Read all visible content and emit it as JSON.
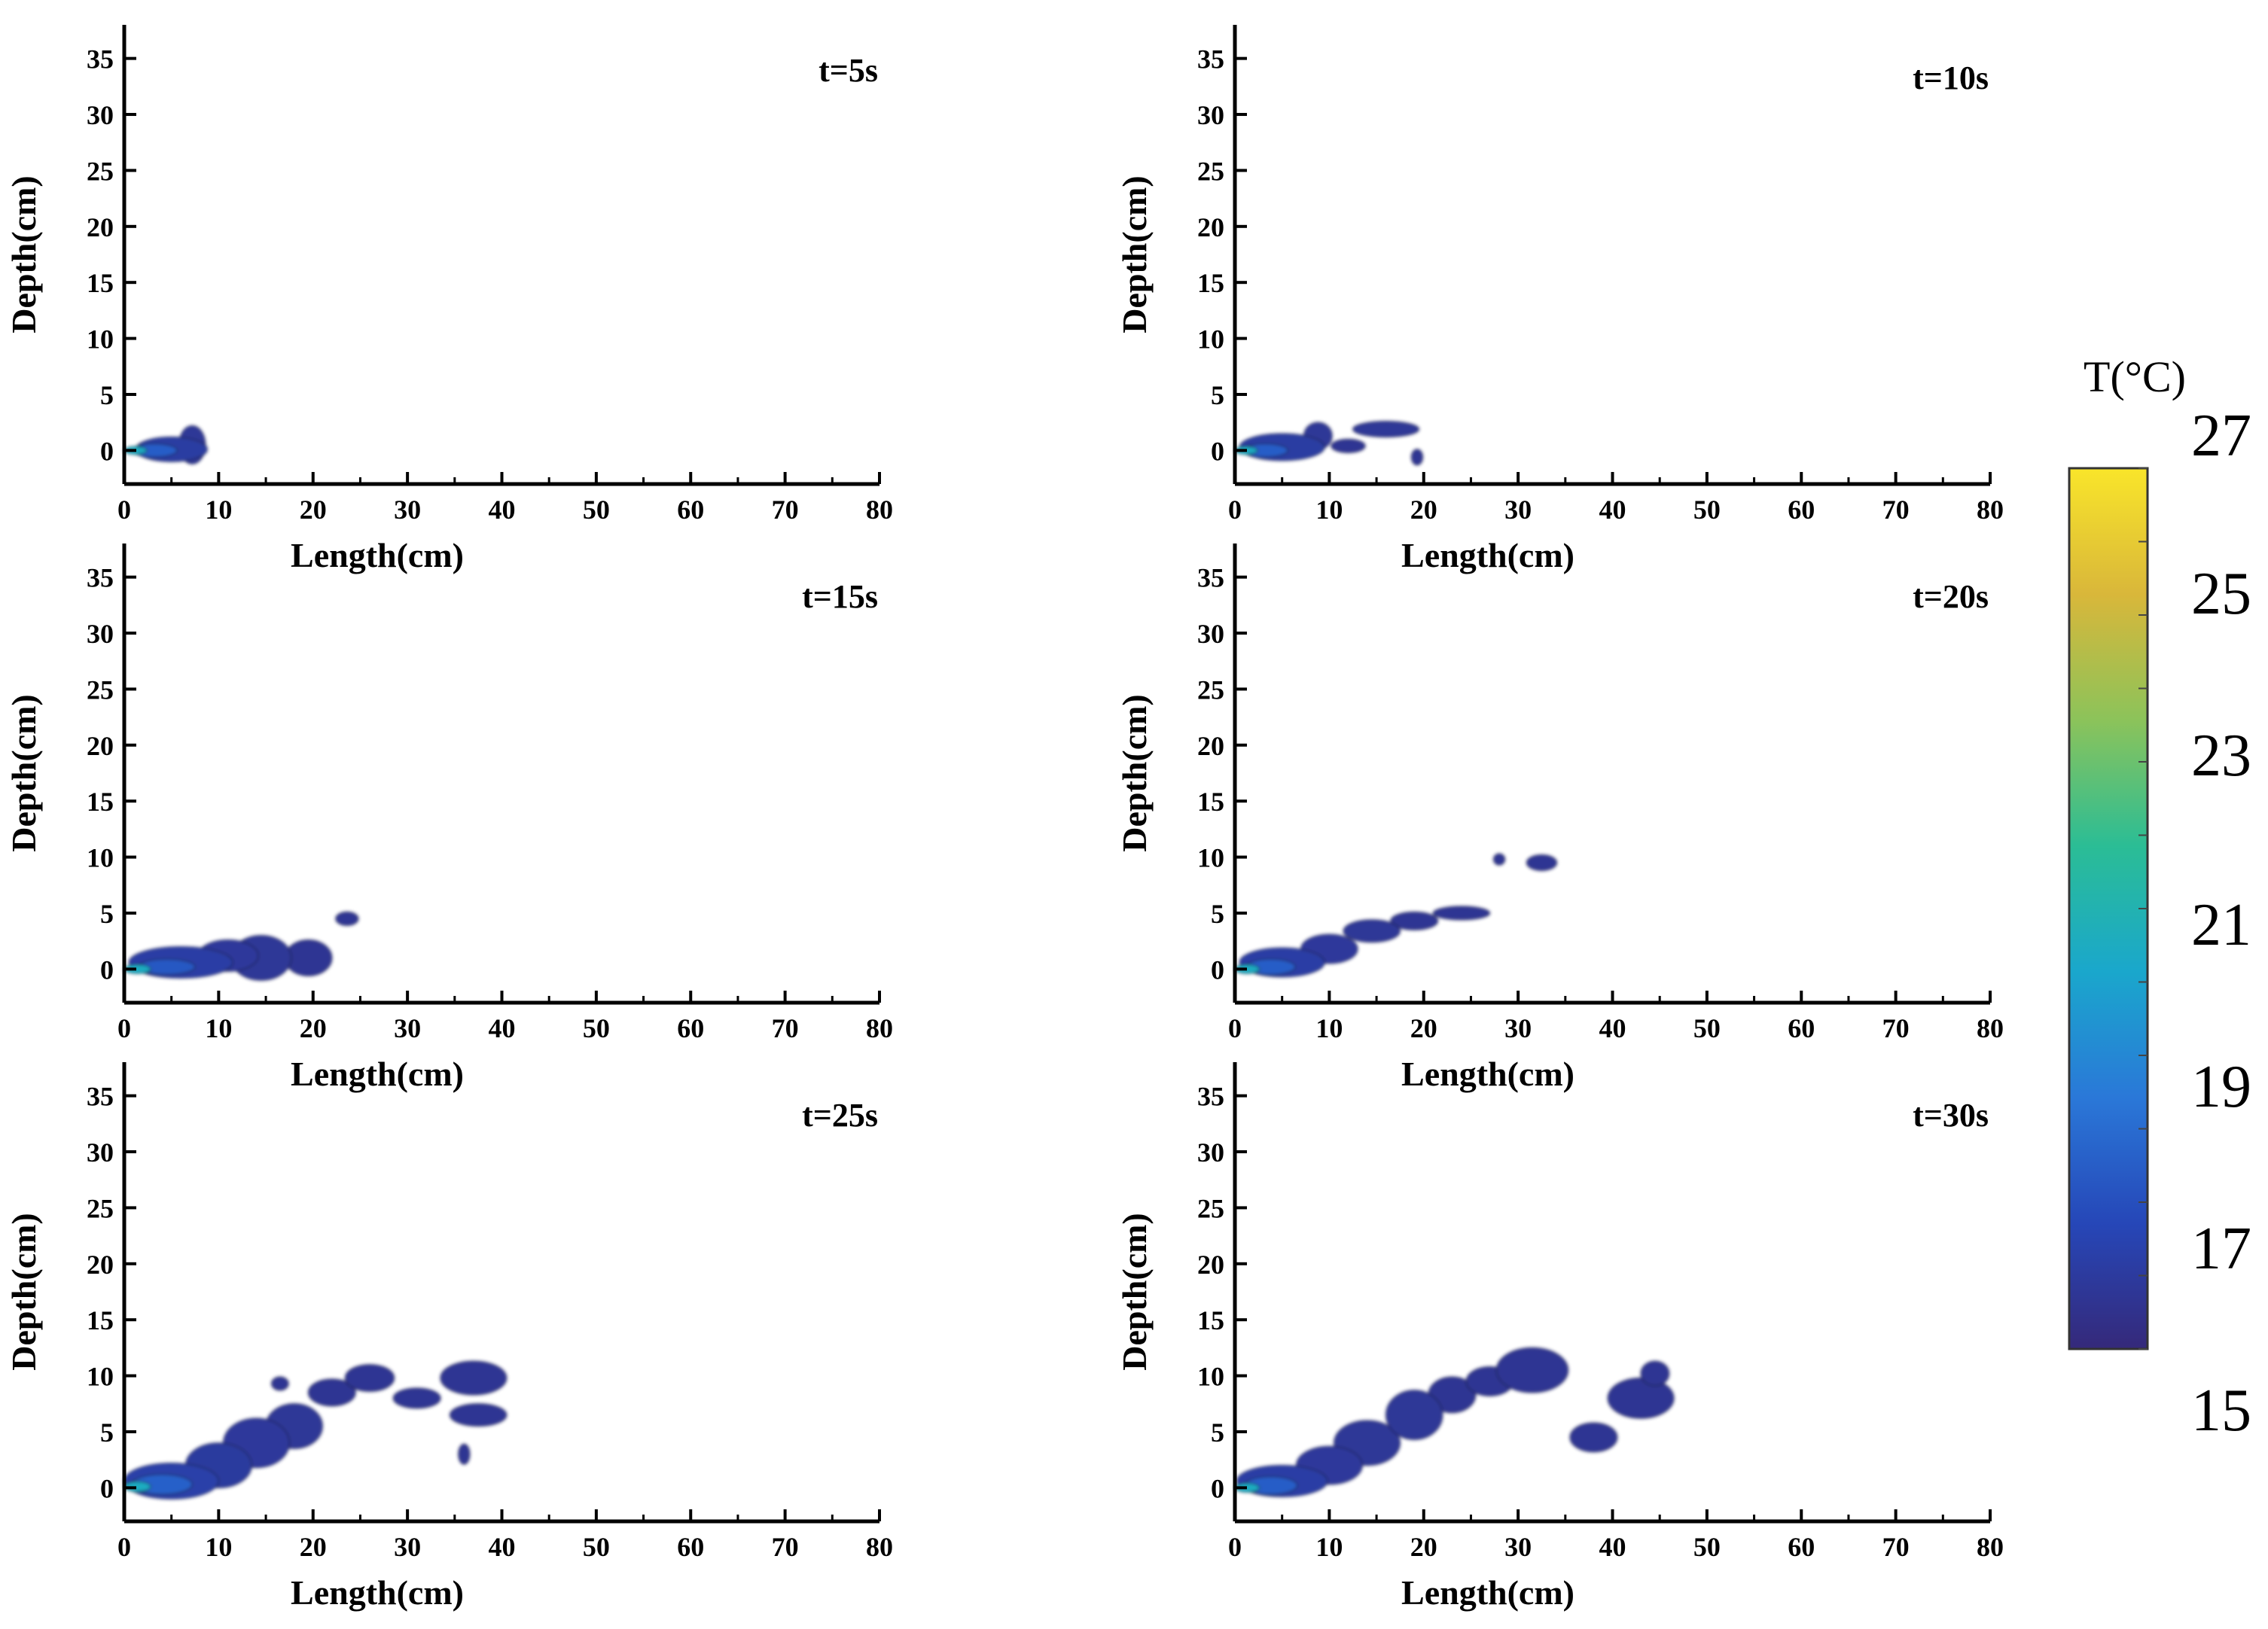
{
  "chart_data": [
    {
      "type": "heatmap",
      "title": "t=5s",
      "xlabel": "Length(cm)",
      "ylabel": "Depth(cm)",
      "xlim": [
        0,
        80
      ],
      "ylim": [
        -3,
        38
      ],
      "xticks": [
        0,
        10,
        20,
        30,
        40,
        50,
        60,
        70,
        80
      ],
      "yticks": [
        0,
        5,
        10,
        15,
        20,
        25,
        30,
        35
      ],
      "blobs": [
        {
          "x": 5,
          "y": 0.1,
          "rx": 3.8,
          "ry": 1.1,
          "t": 16.1
        },
        {
          "x": 7.2,
          "y": 0.5,
          "rx": 1.4,
          "ry": 1.7,
          "t": 15.8
        },
        {
          "x": 3.2,
          "y": 0,
          "rx": 2.4,
          "ry": 0.6,
          "t": 17.5
        },
        {
          "x": 1.2,
          "y": 0,
          "rx": 1.2,
          "ry": 0.35,
          "t": 20.5
        }
      ]
    },
    {
      "type": "heatmap",
      "title": "t=10s",
      "xlabel": "Length(cm)",
      "ylabel": "Depth(cm)",
      "xlim": [
        0,
        80
      ],
      "ylim": [
        -3,
        38
      ],
      "xticks": [
        0,
        10,
        20,
        30,
        40,
        50,
        60,
        70,
        80
      ],
      "yticks": [
        0,
        5,
        10,
        15,
        20,
        25,
        30,
        35
      ],
      "blobs": [
        {
          "x": 5,
          "y": 0.3,
          "rx": 4.5,
          "ry": 1.2,
          "t": 16.1
        },
        {
          "x": 8.8,
          "y": 1.3,
          "rx": 1.5,
          "ry": 1.2,
          "t": 15.8
        },
        {
          "x": 12,
          "y": 0.4,
          "rx": 1.8,
          "ry": 0.6,
          "t": 15.7
        },
        {
          "x": 16,
          "y": 1.9,
          "rx": 3.5,
          "ry": 0.7,
          "t": 15.8
        },
        {
          "x": 19.3,
          "y": -0.6,
          "rx": 0.6,
          "ry": 0.7,
          "t": 15.7
        },
        {
          "x": 3.2,
          "y": 0,
          "rx": 2.4,
          "ry": 0.6,
          "t": 17.5
        },
        {
          "x": 1.2,
          "y": 0,
          "rx": 1.2,
          "ry": 0.35,
          "t": 20.5
        }
      ]
    },
    {
      "type": "heatmap",
      "title": "t=15s",
      "xlabel": "Length(cm)",
      "ylabel": "Depth(cm)",
      "xlim": [
        0,
        80
      ],
      "ylim": [
        -3,
        38
      ],
      "xticks": [
        0,
        10,
        20,
        30,
        40,
        50,
        60,
        70,
        80
      ],
      "yticks": [
        0,
        5,
        10,
        15,
        20,
        25,
        30,
        35
      ],
      "blobs": [
        {
          "x": 6,
          "y": 0.6,
          "rx": 5.5,
          "ry": 1.4,
          "t": 16.2
        },
        {
          "x": 11,
          "y": 1.2,
          "rx": 3.2,
          "ry": 1.4,
          "t": 15.9
        },
        {
          "x": 14.5,
          "y": 1,
          "rx": 3.2,
          "ry": 2,
          "t": 15.8
        },
        {
          "x": 19.5,
          "y": 1,
          "rx": 2.5,
          "ry": 1.6,
          "t": 15.7
        },
        {
          "x": 23.6,
          "y": 4.5,
          "rx": 1.2,
          "ry": 0.6,
          "t": 15.7
        },
        {
          "x": 4.5,
          "y": 0.2,
          "rx": 3,
          "ry": 0.7,
          "t": 17.3
        },
        {
          "x": 1.4,
          "y": 0,
          "rx": 1.4,
          "ry": 0.4,
          "t": 20.5
        }
      ]
    },
    {
      "type": "heatmap",
      "title": "t=20s",
      "xlabel": "Length(cm)",
      "ylabel": "Depth(cm)",
      "xlim": [
        0,
        80
      ],
      "ylim": [
        -3,
        38
      ],
      "xticks": [
        0,
        10,
        20,
        30,
        40,
        50,
        60,
        70,
        80
      ],
      "yticks": [
        0,
        5,
        10,
        15,
        20,
        25,
        30,
        35
      ],
      "blobs": [
        {
          "x": 5,
          "y": 0.6,
          "rx": 4.5,
          "ry": 1.3,
          "t": 16.2
        },
        {
          "x": 10,
          "y": 1.8,
          "rx": 3,
          "ry": 1.3,
          "t": 15.9
        },
        {
          "x": 14.5,
          "y": 3.4,
          "rx": 3,
          "ry": 1,
          "t": 15.8
        },
        {
          "x": 19,
          "y": 4.3,
          "rx": 2.5,
          "ry": 0.8,
          "t": 15.7
        },
        {
          "x": 24,
          "y": 5,
          "rx": 3,
          "ry": 0.6,
          "t": 15.7
        },
        {
          "x": 28,
          "y": 9.8,
          "rx": 0.6,
          "ry": 0.5,
          "t": 15.7
        },
        {
          "x": 32.5,
          "y": 9.5,
          "rx": 1.6,
          "ry": 0.7,
          "t": 15.7
        },
        {
          "x": 3.8,
          "y": 0.2,
          "rx": 2.6,
          "ry": 0.7,
          "t": 17.5
        },
        {
          "x": 1.3,
          "y": 0,
          "rx": 1.3,
          "ry": 0.4,
          "t": 20.5
        }
      ]
    },
    {
      "type": "heatmap",
      "title": "t=25s",
      "xlabel": "Length(cm)",
      "ylabel": "Depth(cm)",
      "xlim": [
        0,
        80
      ],
      "ylim": [
        -3,
        38
      ],
      "xticks": [
        0,
        10,
        20,
        30,
        40,
        50,
        60,
        70,
        80
      ],
      "yticks": [
        0,
        5,
        10,
        15,
        20,
        25,
        30,
        35
      ],
      "blobs": [
        {
          "x": 5,
          "y": 0.6,
          "rx": 5,
          "ry": 1.6,
          "t": 16.3
        },
        {
          "x": 10,
          "y": 2,
          "rx": 3.5,
          "ry": 2,
          "t": 16
        },
        {
          "x": 14,
          "y": 4,
          "rx": 3.5,
          "ry": 2.2,
          "t": 15.9
        },
        {
          "x": 18,
          "y": 5.5,
          "rx": 3,
          "ry": 2,
          "t": 15.8
        },
        {
          "x": 16.5,
          "y": 9.3,
          "rx": 0.9,
          "ry": 0.6,
          "t": 15.7
        },
        {
          "x": 22,
          "y": 8.5,
          "rx": 2.5,
          "ry": 1.2,
          "t": 15.7
        },
        {
          "x": 26,
          "y": 9.8,
          "rx": 2.6,
          "ry": 1.2,
          "t": 15.7
        },
        {
          "x": 31,
          "y": 8,
          "rx": 2.5,
          "ry": 0.9,
          "t": 15.7
        },
        {
          "x": 37,
          "y": 9.8,
          "rx": 3.5,
          "ry": 1.5,
          "t": 15.7
        },
        {
          "x": 37.5,
          "y": 6.5,
          "rx": 3,
          "ry": 1,
          "t": 15.7
        },
        {
          "x": 36,
          "y": 3,
          "rx": 0.6,
          "ry": 0.9,
          "t": 15.7
        },
        {
          "x": 4,
          "y": 0.3,
          "rx": 3.2,
          "ry": 0.9,
          "t": 17.6
        },
        {
          "x": 1.4,
          "y": 0.1,
          "rx": 1.4,
          "ry": 0.45,
          "t": 20.5
        }
      ]
    },
    {
      "type": "heatmap",
      "title": "t=30s",
      "xlabel": "Length(cm)",
      "ylabel": "Depth(cm)",
      "xlim": [
        0,
        80
      ],
      "ylim": [
        -3,
        38
      ],
      "xticks": [
        0,
        10,
        20,
        30,
        40,
        50,
        60,
        70,
        80
      ],
      "yticks": [
        0,
        5,
        10,
        15,
        20,
        25,
        30,
        35
      ],
      "blobs": [
        {
          "x": 5,
          "y": 0.6,
          "rx": 4.8,
          "ry": 1.4,
          "t": 16.2
        },
        {
          "x": 10,
          "y": 2,
          "rx": 3.5,
          "ry": 1.7,
          "t": 15.9
        },
        {
          "x": 14,
          "y": 4,
          "rx": 3.5,
          "ry": 2,
          "t": 15.8
        },
        {
          "x": 19,
          "y": 6.5,
          "rx": 3,
          "ry": 2.2,
          "t": 15.8
        },
        {
          "x": 23,
          "y": 8.3,
          "rx": 2.5,
          "ry": 1.6,
          "t": 15.7
        },
        {
          "x": 27,
          "y": 9.5,
          "rx": 2.5,
          "ry": 1.3,
          "t": 15.7
        },
        {
          "x": 31.5,
          "y": 10.5,
          "rx": 3.8,
          "ry": 2,
          "t": 15.7
        },
        {
          "x": 38,
          "y": 4.5,
          "rx": 2.5,
          "ry": 1.3,
          "t": 15.7
        },
        {
          "x": 43,
          "y": 8,
          "rx": 3.5,
          "ry": 1.8,
          "t": 15.7
        },
        {
          "x": 44.5,
          "y": 10.2,
          "rx": 1.5,
          "ry": 1.1,
          "t": 15.7
        },
        {
          "x": 3.8,
          "y": 0.2,
          "rx": 2.8,
          "ry": 0.8,
          "t": 17.5
        },
        {
          "x": 1.3,
          "y": 0,
          "rx": 1.3,
          "ry": 0.4,
          "t": 20.5
        }
      ]
    }
  ],
  "colorbar": {
    "title": "T(°C)",
    "min": 15,
    "max": 27,
    "ticks": [
      "27",
      "25",
      "23",
      "21",
      "19",
      "17",
      "15"
    ],
    "colors": [
      "#35297a",
      "#2647b8",
      "#2a78d8",
      "#1aa7cc",
      "#2bbd95",
      "#8cc35a",
      "#d9b73a",
      "#f9e52a"
    ]
  }
}
